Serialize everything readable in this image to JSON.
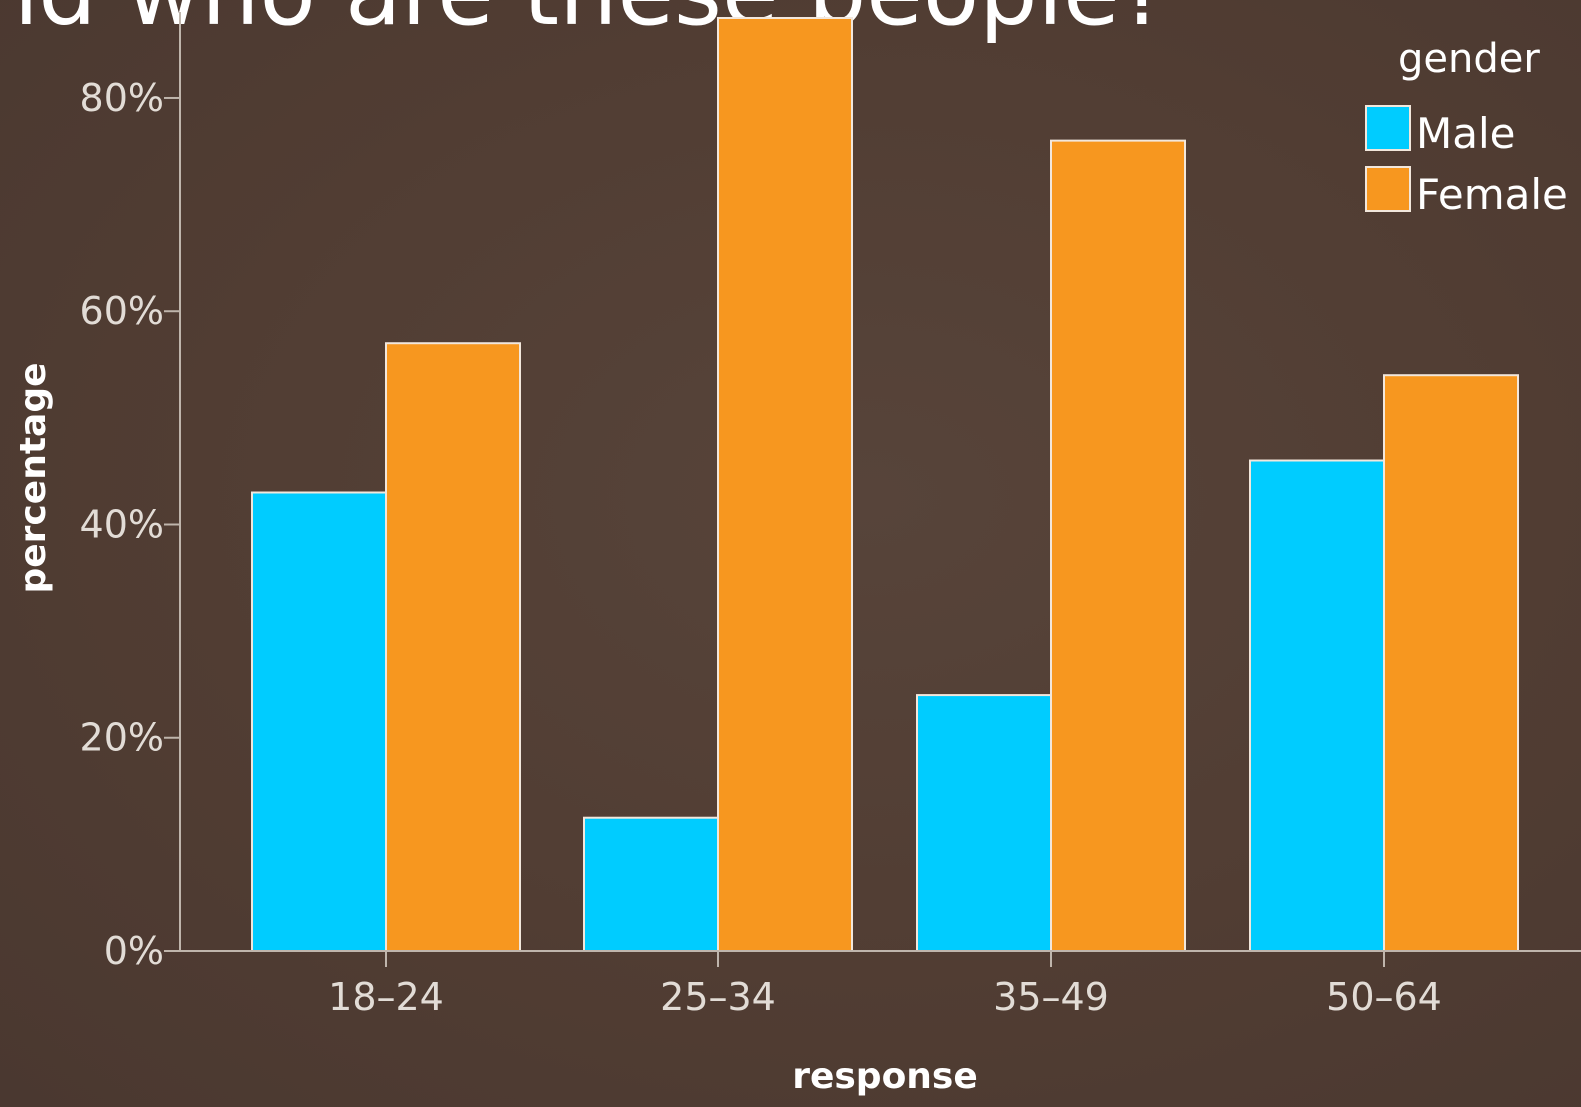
{
  "slide": {
    "title_fragment": "nd who are these people?"
  },
  "chart_data": {
    "type": "bar",
    "title": "",
    "xlabel": "response",
    "ylabel": "percentage",
    "categories": [
      "18–24",
      "25–34",
      "35–49",
      "50–64"
    ],
    "series": [
      {
        "name": "Male",
        "color": "#00ccff",
        "values": [
          43,
          12.5,
          24,
          46
        ]
      },
      {
        "name": "Female",
        "color": "#f7971f",
        "values": [
          57,
          87.5,
          76,
          54
        ]
      }
    ],
    "ylim": [
      0,
      87.5
    ],
    "yticks": [
      0,
      20,
      40,
      60,
      80
    ],
    "ytick_labels": [
      "0%",
      "20%",
      "40%",
      "60%",
      "80%"
    ],
    "legend": {
      "title": "gender",
      "position": "top-right"
    },
    "grid": false
  }
}
